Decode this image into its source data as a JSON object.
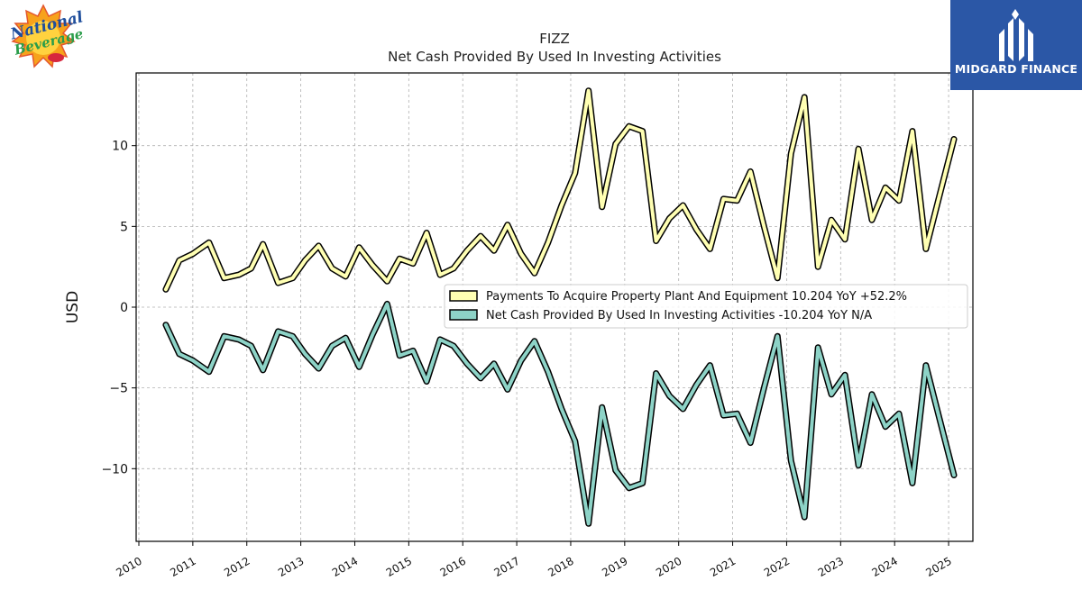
{
  "logos": {
    "left_brand": "National Beverage Corp.",
    "right_brand": "MIDGARD FINANCE"
  },
  "chart_data": {
    "type": "line",
    "title": "FIZZ",
    "subtitle": "Net Cash Provided By Used In Investing Activities",
    "ylabel": "USD",
    "xlabel": "",
    "xlim": [
      2009.95,
      2025.45
    ],
    "ylim": [
      -14.5,
      14.5
    ],
    "yticks": [
      -10,
      -5,
      0,
      5,
      10
    ],
    "ytick_labels": [
      "−10",
      "−5",
      "0",
      "5",
      "10"
    ],
    "xticks": [
      2010,
      2011,
      2012,
      2013,
      2014,
      2015,
      2016,
      2017,
      2018,
      2019,
      2020,
      2021,
      2022,
      2023,
      2024,
      2025
    ],
    "xtick_labels": [
      "2010",
      "2011",
      "2012",
      "2013",
      "2014",
      "2015",
      "2016",
      "2017",
      "2018",
      "2019",
      "2020",
      "2021",
      "2022",
      "2023",
      "2024",
      "2025"
    ],
    "grid": true,
    "legend_position": "center-right",
    "series": [
      {
        "name": "Payments To Acquire Property Plant And Equipment",
        "legend_label": "Payments To Acquire Property Plant And Equipment  10.204 YoY +52.2%",
        "color": "#ffffb3",
        "x": [
          2010.5,
          2010.75,
          2011.0,
          2011.3,
          2011.58,
          2011.85,
          2012.08,
          2012.3,
          2012.58,
          2012.85,
          2013.08,
          2013.33,
          2013.58,
          2013.83,
          2014.08,
          2014.33,
          2014.6,
          2014.83,
          2015.08,
          2015.33,
          2015.58,
          2015.83,
          2016.08,
          2016.33,
          2016.58,
          2016.83,
          2017.08,
          2017.33,
          2017.58,
          2017.83,
          2018.08,
          2018.33,
          2018.58,
          2018.83,
          2019.08,
          2019.33,
          2019.58,
          2019.83,
          2020.08,
          2020.33,
          2020.58,
          2020.83,
          2021.08,
          2021.33,
          2021.58,
          2021.83,
          2022.08,
          2022.33,
          2022.58,
          2022.83,
          2023.08,
          2023.33,
          2023.58,
          2023.83,
          2024.08,
          2024.33,
          2024.58,
          2024.83,
          2025.1
        ],
        "y": [
          1.1,
          2.9,
          3.3,
          4.0,
          1.8,
          2.0,
          2.4,
          3.9,
          1.5,
          1.8,
          2.9,
          3.8,
          2.4,
          1.9,
          3.7,
          2.6,
          1.6,
          3.0,
          2.7,
          4.6,
          2.0,
          2.4,
          3.5,
          4.4,
          3.5,
          5.1,
          3.3,
          2.1,
          4.0,
          6.3,
          8.3,
          13.4,
          6.2,
          10.1,
          11.2,
          10.9,
          4.1,
          5.5,
          6.3,
          4.8,
          3.6,
          6.7,
          6.6,
          8.4,
          5.0,
          1.8,
          9.5,
          13.0,
          2.5,
          5.4,
          4.2,
          9.8,
          5.4,
          7.4,
          6.6,
          10.9,
          3.6,
          6.9,
          10.4
        ]
      },
      {
        "name": "Net Cash Provided By Used In Investing Activities",
        "legend_label": "Net Cash Provided By Used In Investing Activities  -10.204 YoY N/A",
        "color": "#8dd3c7",
        "x": [
          2010.5,
          2010.75,
          2011.0,
          2011.3,
          2011.58,
          2011.85,
          2012.08,
          2012.3,
          2012.58,
          2012.85,
          2013.08,
          2013.33,
          2013.58,
          2013.83,
          2014.08,
          2014.33,
          2014.6,
          2014.83,
          2015.08,
          2015.33,
          2015.58,
          2015.83,
          2016.08,
          2016.33,
          2016.58,
          2016.83,
          2017.08,
          2017.33,
          2017.58,
          2017.83,
          2018.08,
          2018.33,
          2018.58,
          2018.83,
          2019.08,
          2019.33,
          2019.58,
          2019.83,
          2020.08,
          2020.33,
          2020.58,
          2020.83,
          2021.08,
          2021.33,
          2021.58,
          2021.83,
          2022.08,
          2022.33,
          2022.58,
          2022.83,
          2023.08,
          2023.33,
          2023.58,
          2023.83,
          2024.08,
          2024.33,
          2024.58,
          2024.83,
          2025.1
        ],
        "y": [
          -1.1,
          -2.9,
          -3.3,
          -4.0,
          -1.8,
          -2.0,
          -2.4,
          -3.9,
          -1.5,
          -1.8,
          -2.9,
          -3.8,
          -2.4,
          -1.9,
          -3.7,
          -1.7,
          0.2,
          -3.0,
          -2.7,
          -4.6,
          -2.0,
          -2.4,
          -3.5,
          -4.4,
          -3.5,
          -5.1,
          -3.3,
          -2.1,
          -4.0,
          -6.3,
          -8.3,
          -13.4,
          -6.2,
          -10.1,
          -11.2,
          -10.9,
          -4.1,
          -5.5,
          -6.3,
          -4.8,
          -3.6,
          -6.7,
          -6.6,
          -8.4,
          -5.0,
          -1.8,
          -9.5,
          -13.0,
          -2.5,
          -5.4,
          -4.2,
          -9.8,
          -5.4,
          -7.4,
          -6.6,
          -10.9,
          -3.6,
          -6.9,
          -10.4
        ]
      }
    ]
  }
}
